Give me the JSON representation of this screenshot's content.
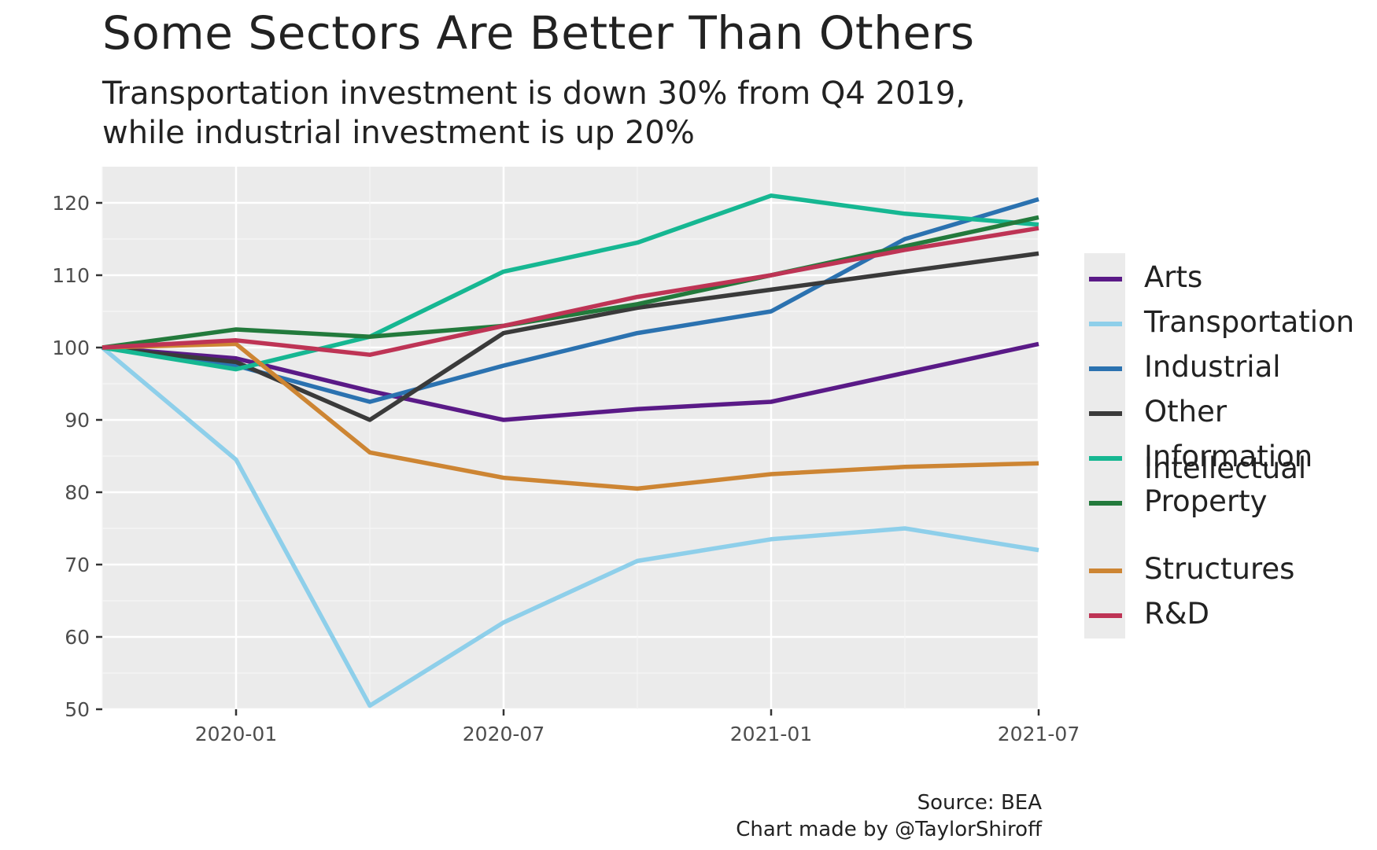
{
  "header": {
    "title": "Some Sectors Are Better Than Others",
    "subtitle_line1": "Transportation investment is down 30% from Q4 2019,",
    "subtitle_line2": "while industrial investment is up 20%"
  },
  "caption": {
    "line1": "Source: BEA",
    "line2": "Chart made by @TaylorShiroff"
  },
  "chart_data": {
    "type": "line",
    "title": "Some Sectors Are Better Than Others",
    "subtitle": "Transportation investment is down 30% from Q4 2019, while industrial investment is up 20%",
    "xlabel": "",
    "ylabel": "",
    "x": [
      "2019-10",
      "2020-01",
      "2020-04",
      "2020-07",
      "2020-10",
      "2021-01",
      "2021-04",
      "2021-07"
    ],
    "x_ticks": [
      "2020-01",
      "2020-07",
      "2021-01",
      "2021-07"
    ],
    "ylim": [
      50,
      125
    ],
    "y_ticks": [
      50,
      60,
      70,
      80,
      90,
      100,
      110,
      120
    ],
    "grid": true,
    "legend_position": "right",
    "series": [
      {
        "name": "Arts",
        "color": "#5a1a87",
        "values": [
          100,
          98.5,
          94,
          90,
          91.5,
          92.5,
          96.5,
          100.5
        ]
      },
      {
        "name": "Transportation",
        "color": "#8ecfea",
        "values": [
          100,
          84.5,
          50.5,
          62,
          70.5,
          73.5,
          75,
          72
        ]
      },
      {
        "name": "Industrial",
        "color": "#2b72b0",
        "values": [
          100,
          97.5,
          92.5,
          97.5,
          102,
          105,
          115,
          120.5
        ]
      },
      {
        "name": "Other",
        "color": "#3a3a3a",
        "values": [
          100,
          98,
          90,
          102,
          105.5,
          108,
          110.5,
          113
        ]
      },
      {
        "name": "Information",
        "color": "#16b792",
        "values": [
          100,
          97,
          101.5,
          110.5,
          114.5,
          121,
          118.5,
          117
        ]
      },
      {
        "name": "Intellectual Property",
        "legend_lines": [
          "Intellectual",
          "Property"
        ],
        "color": "#237a3c",
        "values": [
          100,
          102.5,
          101.5,
          103,
          106,
          110,
          114,
          118
        ]
      },
      {
        "name": "Structures",
        "color": "#cd8533",
        "values": [
          100,
          100.5,
          85.5,
          82,
          80.5,
          82.5,
          83.5,
          84
        ]
      },
      {
        "name": "R&D",
        "color": "#be3455",
        "values": [
          100,
          101,
          99,
          103,
          107,
          110,
          113.5,
          116.5
        ]
      }
    ]
  }
}
